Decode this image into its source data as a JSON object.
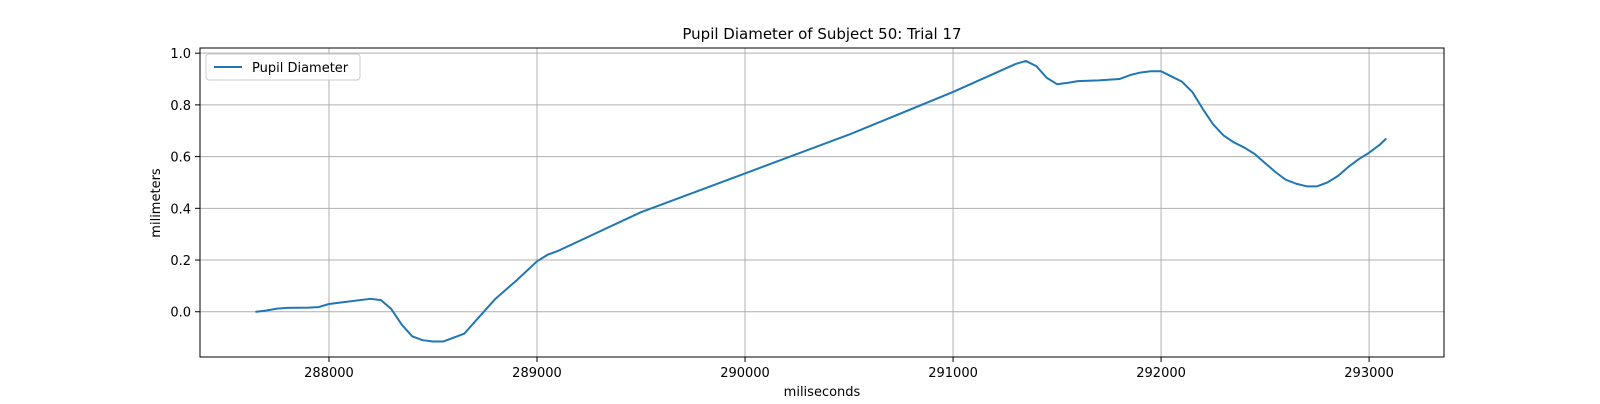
{
  "chart_data": {
    "type": "line",
    "title": "Pupil Diameter of Subject 50: Trial 17",
    "xlabel": "miliseconds",
    "ylabel": "milimeters",
    "xlim": [
      287380,
      293360
    ],
    "ylim": [
      -0.175,
      1.02
    ],
    "x_ticks": [
      288000,
      289000,
      290000,
      291000,
      292000,
      293000
    ],
    "y_ticks": [
      0.0,
      0.2,
      0.4,
      0.6,
      0.8,
      1.0
    ],
    "grid": true,
    "legend": {
      "position": "top-left"
    },
    "series": [
      {
        "name": "Pupil Diameter",
        "color": "#1f77b4",
        "points": [
          [
            287650,
            0.0
          ],
          [
            287700,
            0.005
          ],
          [
            287750,
            0.012
          ],
          [
            287800,
            0.015
          ],
          [
            287900,
            0.016
          ],
          [
            287950,
            0.018
          ],
          [
            288000,
            0.03
          ],
          [
            288100,
            0.04
          ],
          [
            288200,
            0.05
          ],
          [
            288250,
            0.045
          ],
          [
            288300,
            0.01
          ],
          [
            288350,
            -0.05
          ],
          [
            288400,
            -0.095
          ],
          [
            288450,
            -0.11
          ],
          [
            288500,
            -0.115
          ],
          [
            288550,
            -0.115
          ],
          [
            288600,
            -0.1
          ],
          [
            288650,
            -0.085
          ],
          [
            288700,
            -0.04
          ],
          [
            288800,
            0.05
          ],
          [
            288900,
            0.12
          ],
          [
            289000,
            0.195
          ],
          [
            289050,
            0.22
          ],
          [
            289100,
            0.235
          ],
          [
            289500,
            0.385
          ],
          [
            290000,
            0.535
          ],
          [
            290500,
            0.685
          ],
          [
            291000,
            0.85
          ],
          [
            291300,
            0.958
          ],
          [
            291350,
            0.97
          ],
          [
            291400,
            0.95
          ],
          [
            291450,
            0.905
          ],
          [
            291500,
            0.88
          ],
          [
            291550,
            0.885
          ],
          [
            291600,
            0.892
          ],
          [
            291700,
            0.895
          ],
          [
            291800,
            0.9
          ],
          [
            291850,
            0.915
          ],
          [
            291900,
            0.925
          ],
          [
            291950,
            0.93
          ],
          [
            292000,
            0.93
          ],
          [
            292050,
            0.91
          ],
          [
            292100,
            0.89
          ],
          [
            292150,
            0.85
          ],
          [
            292200,
            0.785
          ],
          [
            292250,
            0.725
          ],
          [
            292300,
            0.682
          ],
          [
            292350,
            0.655
          ],
          [
            292400,
            0.635
          ],
          [
            292450,
            0.61
          ],
          [
            292500,
            0.575
          ],
          [
            292550,
            0.54
          ],
          [
            292600,
            0.51
          ],
          [
            292650,
            0.495
          ],
          [
            292700,
            0.485
          ],
          [
            292750,
            0.485
          ],
          [
            292800,
            0.5
          ],
          [
            292850,
            0.525
          ],
          [
            292900,
            0.56
          ],
          [
            292950,
            0.59
          ],
          [
            293000,
            0.615
          ],
          [
            293050,
            0.645
          ],
          [
            293080,
            0.668
          ]
        ]
      }
    ]
  }
}
